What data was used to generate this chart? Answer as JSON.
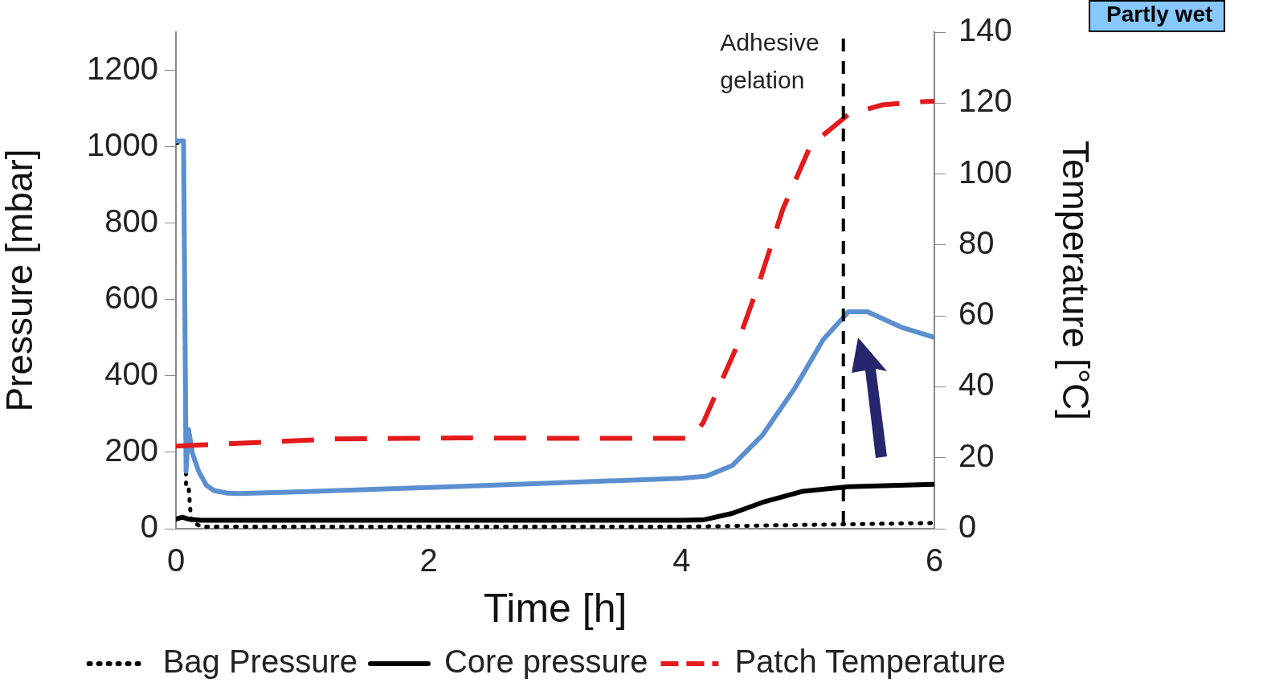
{
  "chart_data": {
    "type": "line",
    "xlabel": "Time [h]",
    "ylabel": "Pressure [mbar]",
    "y2label": "Temperature [°C]",
    "xlim": [
      0,
      6
    ],
    "xticks": [
      0,
      2,
      4,
      6
    ],
    "ylim": [
      0,
      1300
    ],
    "yticks": [
      0,
      200,
      400,
      600,
      800,
      1000,
      1200
    ],
    "y2lim": [
      0,
      140
    ],
    "y2ticks": [
      0,
      20,
      40,
      60,
      80,
      100,
      120,
      140
    ],
    "grid": false,
    "legend": "bottom",
    "ref_lines": [
      {
        "axis": "x",
        "value": 5.28,
        "label": "Adhesive gelation",
        "color": "#000000",
        "line_style": "dashed"
      }
    ],
    "annotations": [
      "Partly wet"
    ],
    "series": [
      {
        "color": "#5b8fd0",
        "line_style": "solid",
        "x": [
          0,
          0.02,
          0.06,
          0.07,
          0.08,
          0.1,
          0.13,
          0.18,
          0.24,
          0.3,
          0.41,
          0.5,
          1,
          2,
          3,
          4,
          4.2,
          4.4,
          4.64,
          4.9,
          5.12,
          5.32,
          5.47,
          5.75,
          6
        ],
        "values": [
          1015,
          1015,
          1015,
          600,
          150,
          260,
          198,
          150,
          114,
          100,
          93,
          92,
          97,
          108,
          120,
          132,
          138,
          165,
          245,
          370,
          495,
          568,
          568,
          526,
          501
        ]
      },
      {
        "name": "Bag Pressure",
        "color": "#000000",
        "line_style": "dotted",
        "x": [
          0,
          0.06,
          0.08,
          0.1,
          0.12,
          0.2,
          1,
          2,
          3,
          4,
          5,
          6
        ],
        "values": [
          1010,
          1010,
          110,
          110,
          20,
          5,
          5,
          5,
          5,
          5,
          10,
          15
        ]
      },
      {
        "name": "Core pressure",
        "color": "#000000",
        "line_style": "solid",
        "x": [
          0,
          0.05,
          0.1,
          0.2,
          1,
          2,
          3,
          4,
          4.17,
          4.4,
          4.64,
          4.96,
          5.32,
          6
        ],
        "values": [
          25,
          30,
          25,
          22,
          22,
          22,
          22,
          22,
          23,
          40,
          69,
          98,
          110,
          116
        ]
      },
      {
        "name": "Patch Temperature",
        "color": "#e41a1c",
        "line_style": "dashed",
        "axis": "y2",
        "x": [
          0,
          0.32,
          1.26,
          2.23,
          3,
          4.07,
          4.17,
          4.42,
          4.61,
          4.8,
          5.02,
          5.32,
          5.59,
          5.91,
          6
        ],
        "values": [
          23.3,
          23.8,
          25.3,
          25.6,
          25.5,
          25.5,
          29.8,
          50,
          69,
          90,
          108,
          116.8,
          119.5,
          120.4,
          120.5
        ]
      }
    ]
  }
}
